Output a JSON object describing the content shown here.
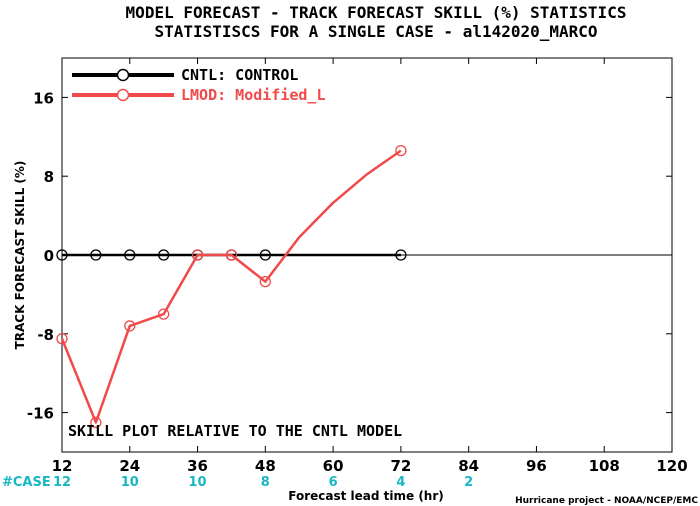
{
  "chart_data": {
    "type": "line",
    "title_lines": [
      "MODEL FORECAST - TRACK FORECAST SKILL (%) STATISTICS",
      "STATISTISCS FOR A SINGLE CASE - al142020_MARCO"
    ],
    "xlabel": "Forecast lead time (hr)",
    "ylabel": "TRACK FORECAST SKILL (%)",
    "xlim": [
      12,
      120
    ],
    "ylim": [
      -20,
      20
    ],
    "x_ticks": [
      12,
      24,
      36,
      48,
      60,
      72,
      84,
      96,
      108,
      120
    ],
    "y_ticks": [
      -16,
      -8,
      0,
      8,
      16
    ],
    "series": [
      {
        "name": "CNTL: CONTROL",
        "color": "#000000",
        "x": [
          12,
          18,
          24,
          30,
          36,
          42,
          48,
          54,
          60,
          66,
          72
        ],
        "y": [
          0,
          0,
          0,
          0,
          0,
          0,
          0,
          0,
          0,
          0,
          0
        ],
        "marker_x": [
          12,
          18,
          24,
          30,
          36,
          42,
          48,
          72
        ]
      },
      {
        "name": "LMOD: Modified_L",
        "color": "#f04a4a",
        "x": [
          12,
          18,
          24,
          30,
          36,
          42,
          48,
          54,
          60,
          66,
          72
        ],
        "y": [
          -8.5,
          -17,
          -7.2,
          -6,
          0,
          0,
          -2.7,
          1.8,
          5.3,
          8.2,
          10.6
        ],
        "marker_x": [
          12,
          18,
          24,
          30,
          36,
          42,
          48,
          72
        ]
      }
    ],
    "case_label": "#CASE",
    "case_counts": [
      {
        "x": 12,
        "n": "12"
      },
      {
        "x": 24,
        "n": "10"
      },
      {
        "x": 36,
        "n": "10"
      },
      {
        "x": 48,
        "n": "8"
      },
      {
        "x": 60,
        "n": "6"
      },
      {
        "x": 72,
        "n": "4"
      },
      {
        "x": 84,
        "n": "2"
      }
    ],
    "annotation": "SKILL PLOT RELATIVE TO THE CNTL MODEL",
    "credit": "Hurricane project - NOAA/NCEP/EMC",
    "legend_position": "top-left",
    "grid": false,
    "zero_line": true
  }
}
